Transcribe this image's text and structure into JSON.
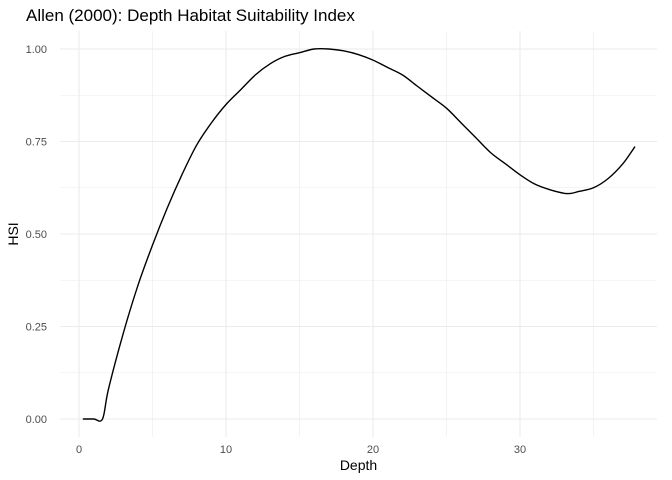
{
  "chart_data": {
    "type": "line",
    "title": "Allen (2000): Depth Habitat Suitability Index",
    "xlabel": "Depth",
    "ylabel": "HSI",
    "xlim": [
      0,
      38
    ],
    "ylim": [
      0,
      1
    ],
    "x_ticks": [
      0,
      10,
      20,
      30
    ],
    "x_tick_labels": [
      "0",
      "10",
      "20",
      "30"
    ],
    "y_ticks": [
      0,
      0.25,
      0.5,
      0.75,
      1
    ],
    "y_tick_labels": [
      "0.00",
      "0.25",
      "0.50",
      "0.75",
      "1.00"
    ],
    "grid": true,
    "legend": "none",
    "line_color": "#000000",
    "grid_color": "#ebebeb",
    "series": [
      {
        "x": [
          0.3,
          1.0,
          1.6,
          2,
          3,
          4,
          5,
          6,
          7,
          8,
          9,
          10,
          11,
          12,
          13,
          14,
          15,
          16,
          17,
          18,
          19,
          20,
          21,
          22,
          23,
          24,
          25,
          26,
          27,
          28,
          29,
          30,
          31,
          32,
          33,
          33.5,
          34,
          35,
          36,
          37,
          37.8
        ],
        "y": [
          0,
          0,
          0,
          0.08,
          0.23,
          0.36,
          0.47,
          0.57,
          0.66,
          0.74,
          0.8,
          0.85,
          0.89,
          0.93,
          0.96,
          0.98,
          0.99,
          1.0,
          1.0,
          0.995,
          0.985,
          0.97,
          0.95,
          0.93,
          0.9,
          0.87,
          0.84,
          0.8,
          0.76,
          0.72,
          0.69,
          0.66,
          0.635,
          0.62,
          0.61,
          0.61,
          0.615,
          0.625,
          0.65,
          0.69,
          0.735
        ]
      }
    ]
  }
}
